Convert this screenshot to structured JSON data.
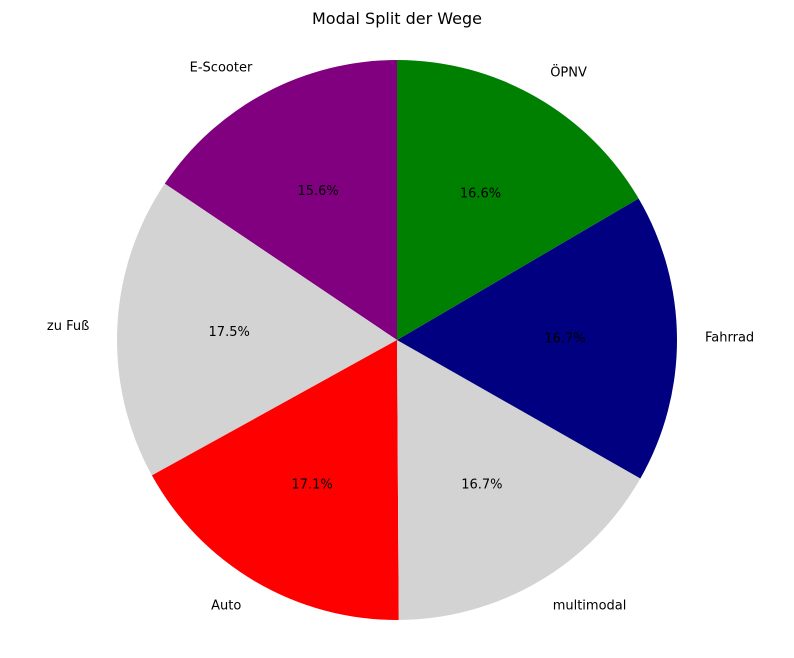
{
  "chart_data": {
    "type": "pie",
    "title": "Modal Split der Wege",
    "start_angle_deg": 90,
    "direction": "counterclockwise",
    "slices": [
      {
        "label": "E-Scooter",
        "value": 15.6,
        "pct_label": "15.6%",
        "color": "#800080"
      },
      {
        "label": "zu Fuß",
        "value": 17.5,
        "pct_label": "17.5%",
        "color": "#d3d3d3"
      },
      {
        "label": "Auto",
        "value": 17.1,
        "pct_label": "17.1%",
        "color": "#ff0000"
      },
      {
        "label": "multimodal",
        "value": 16.7,
        "pct_label": "16.7%",
        "color": "#d3d3d3"
      },
      {
        "label": "Fahrrad",
        "value": 16.7,
        "pct_label": "16.7%",
        "color": "#000080"
      },
      {
        "label": "ÖPNV",
        "value": 16.6,
        "pct_label": "16.6%",
        "color": "#008000"
      }
    ]
  }
}
